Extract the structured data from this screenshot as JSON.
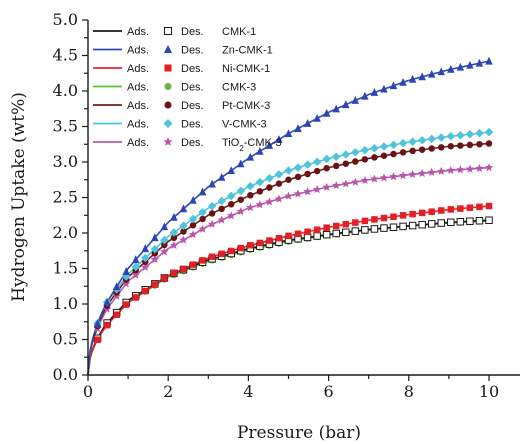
{
  "chart_data": {
    "type": "line",
    "xlabel": "Pressure (bar)",
    "ylabel": "Hydrogen Uptake (wt%)",
    "xlim": [
      0,
      10
    ],
    "ylim": [
      0,
      5.0
    ],
    "x_ticks": [
      "0",
      "2",
      "4",
      "6",
      "8",
      "10"
    ],
    "y_ticks": [
      "0.0",
      "0.5",
      "1.0",
      "1.5",
      "2.0",
      "2.5",
      "3.0",
      "3.5",
      "4.0",
      "4.5",
      "5.0"
    ],
    "grid": false,
    "legend_position": "top-left",
    "legend_labels": {
      "ads": "Ads.",
      "des": "Des."
    },
    "x_values": [
      0,
      0.5,
      1,
      2,
      3,
      4,
      5,
      6,
      7,
      8,
      9,
      10
    ],
    "series": [
      {
        "name": "CMK-1",
        "display_name": "CMK-1",
        "line_color": "#1a1a1a",
        "marker": "open-square",
        "marker_color": "#1a1a1a",
        "values": [
          0.0,
          0.75,
          1.05,
          1.4,
          1.62,
          1.78,
          1.9,
          1.98,
          2.05,
          2.1,
          2.15,
          2.18
        ]
      },
      {
        "name": "Zn-CMK-1",
        "display_name": "Zn-CMK-1",
        "line_color": "#2f4bb0",
        "marker": "triangle",
        "marker_color": "#2b45b5",
        "values": [
          0.0,
          1.05,
          1.5,
          2.15,
          2.65,
          3.05,
          3.4,
          3.7,
          3.95,
          4.15,
          4.3,
          4.42
        ]
      },
      {
        "name": "Ni-CMK-1",
        "display_name": "Ni-CMK-1",
        "line_color": "#e8262b",
        "marker": "square",
        "marker_color": "#e31e24",
        "values": [
          0.0,
          0.72,
          1.02,
          1.4,
          1.65,
          1.82,
          1.96,
          2.08,
          2.18,
          2.26,
          2.33,
          2.38
        ]
      },
      {
        "name": "CMK-3",
        "display_name": "CMK-3",
        "line_color": "#5cc130",
        "marker": "circle",
        "marker_color": "#6cb33f",
        "values": [
          0.0,
          0.74,
          1.02,
          1.38,
          1.6,
          1.76,
          1.88,
          1.97,
          2.04,
          2.1,
          2.14,
          2.17
        ]
      },
      {
        "name": "Pt-CMK-3",
        "display_name": "Pt-CMK-3",
        "line_color": "#6e1f1f",
        "marker": "circle",
        "marker_color": "#6b1313",
        "values": [
          0.0,
          1.0,
          1.38,
          1.88,
          2.25,
          2.52,
          2.75,
          2.92,
          3.05,
          3.15,
          3.22,
          3.26
        ]
      },
      {
        "name": "V-CMK-3",
        "display_name": "V-CMK-3",
        "line_color": "#49c6e0",
        "marker": "diamond",
        "marker_color": "#4fc3dc",
        "values": [
          0.0,
          1.05,
          1.42,
          1.95,
          2.35,
          2.65,
          2.88,
          3.05,
          3.18,
          3.28,
          3.36,
          3.42
        ]
      },
      {
        "name": "TiO2-CMK-3",
        "display_name_main": "TiO",
        "display_name_sub": "2",
        "display_name_rest": "-CMK-3",
        "line_color": "#b45cb0",
        "marker": "star",
        "marker_color": "#b955ad",
        "values": [
          0.0,
          0.95,
          1.32,
          1.78,
          2.1,
          2.35,
          2.52,
          2.65,
          2.75,
          2.82,
          2.88,
          2.92
        ]
      }
    ]
  }
}
